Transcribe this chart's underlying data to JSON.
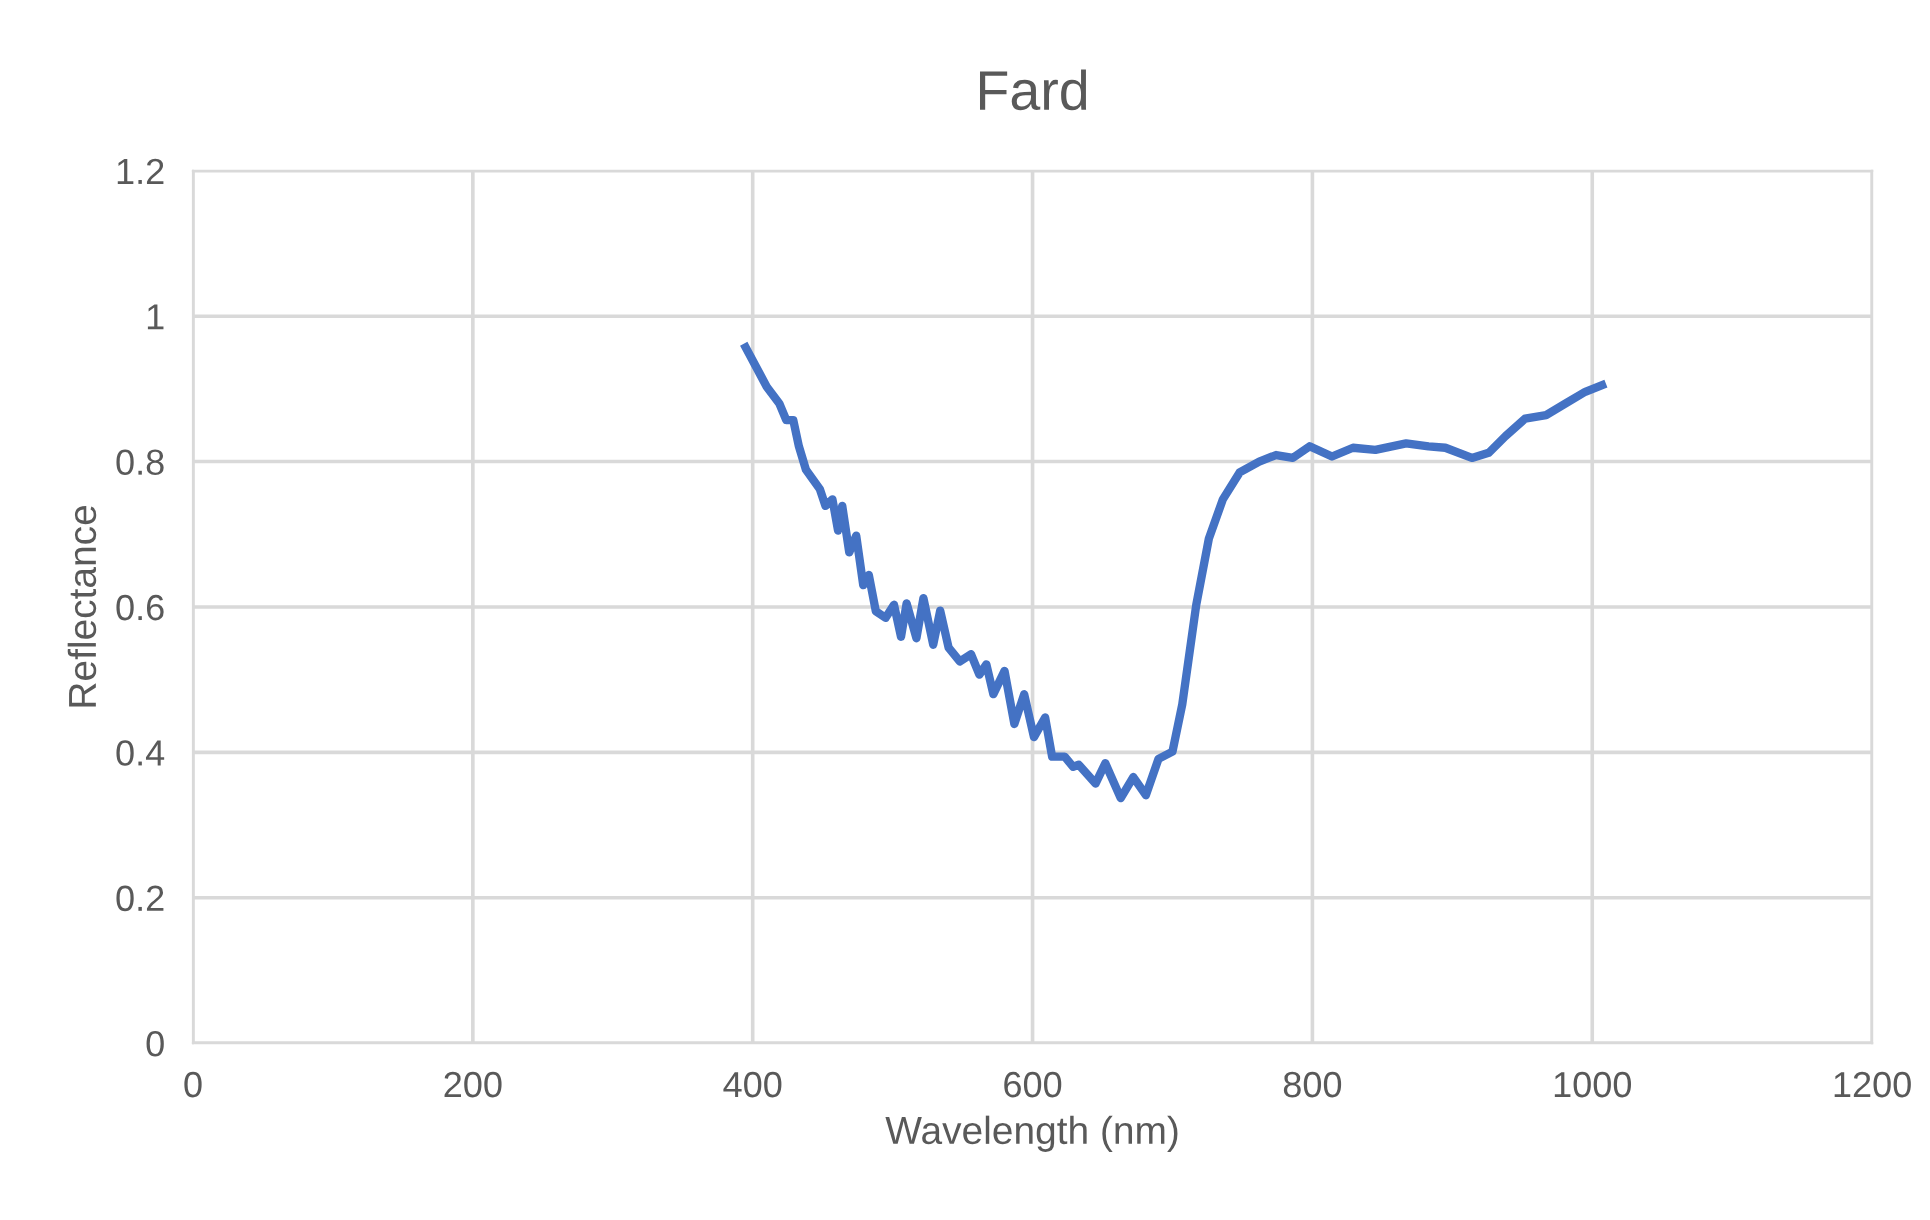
{
  "chart_data": {
    "type": "line",
    "title": "Fard",
    "xlabel": "Wavelength (nm)",
    "ylabel": "Reflectance",
    "x": [
      395,
      410,
      419,
      424,
      429,
      433,
      438,
      448,
      452,
      457,
      461,
      464,
      469,
      474,
      479,
      483,
      488,
      495,
      501,
      506,
      510,
      517,
      522,
      529,
      534,
      540,
      548,
      556,
      562,
      567,
      572,
      580,
      587,
      594,
      601,
      609,
      614,
      623,
      629,
      633,
      645,
      652,
      663,
      672,
      681,
      690,
      700,
      707,
      717,
      726,
      736,
      748,
      762,
      774,
      786,
      798,
      814,
      829,
      845,
      867,
      883,
      895,
      914,
      926,
      938,
      952,
      967,
      981,
      995,
      1007
    ],
    "series": [
      {
        "color": "#4472c4",
        "values": [
          0.957,
          0.903,
          0.88,
          0.857,
          0.857,
          0.821,
          0.789,
          0.762,
          0.739,
          0.748,
          0.705,
          0.739,
          0.675,
          0.698,
          0.63,
          0.644,
          0.594,
          0.585,
          0.603,
          0.559,
          0.605,
          0.557,
          0.612,
          0.548,
          0.595,
          0.544,
          0.525,
          0.535,
          0.507,
          0.521,
          0.48,
          0.512,
          0.439,
          0.48,
          0.421,
          0.448,
          0.394,
          0.394,
          0.38,
          0.383,
          0.357,
          0.385,
          0.337,
          0.366,
          0.341,
          0.391,
          0.401,
          0.466,
          0.603,
          0.694,
          0.748,
          0.785,
          0.8,
          0.809,
          0.805,
          0.821,
          0.807,
          0.819,
          0.816,
          0.825,
          0.821,
          0.819,
          0.805,
          0.812,
          0.835,
          0.859,
          0.864,
          0.88,
          0.896,
          0.905
        ]
      }
    ],
    "xlim": [
      0,
      1200
    ],
    "xticks": [
      0,
      200,
      400,
      600,
      800,
      1000,
      1200
    ],
    "ylim": [
      0,
      1.2
    ],
    "yticks": [
      0,
      0.2,
      0.4,
      0.6,
      0.8,
      1,
      1.2
    ],
    "grid": true,
    "legend": false,
    "marker": "none",
    "line_style": "solid"
  }
}
